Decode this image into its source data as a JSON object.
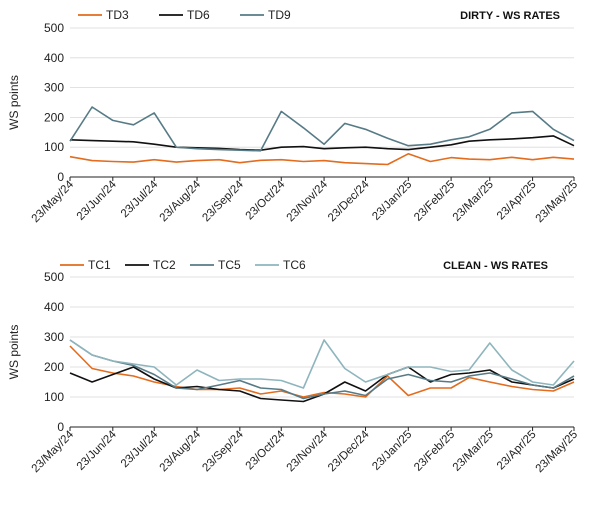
{
  "colors": {
    "series_a": "#e36c1e",
    "series_b": "#111111",
    "series_c": "#577b86",
    "series_d": "#8eb5bd",
    "grid": "#d9d9d9",
    "axis": "#222222"
  },
  "chart_data": [
    {
      "type": "line",
      "title": "DIRTY - WS RATES",
      "ylabel": "WS points",
      "xlabel": "",
      "ylim": [
        0,
        500
      ],
      "yticks": [
        0,
        100,
        200,
        300,
        400,
        500
      ],
      "grid": true,
      "legend_position": "top-left",
      "x_tick_labels": [
        "23/May/24",
        "23/Jun/24",
        "23/Jul/24",
        "23/Aug/24",
        "23/Sep/24",
        "23/Oct/24",
        "23/Nov/24",
        "23/Dec/24",
        "23/Jan/25",
        "23/Feb/25",
        "23/Mar/25",
        "23/Apr/25",
        "23/May/25"
      ],
      "x": [
        "23/May/24",
        "08/Jun/24",
        "23/Jun/24",
        "08/Jul/24",
        "23/Jul/24",
        "08/Aug/24",
        "23/Aug/24",
        "08/Sep/24",
        "23/Sep/24",
        "08/Oct/24",
        "23/Oct/24",
        "08/Nov/24",
        "23/Nov/24",
        "08/Dec/24",
        "23/Dec/24",
        "08/Jan/25",
        "23/Jan/25",
        "08/Feb/25",
        "23/Feb/25",
        "08/Mar/25",
        "23/Mar/25",
        "08/Apr/25",
        "23/Apr/25",
        "08/May/25",
        "23/May/25"
      ],
      "series": [
        {
          "name": "TD3",
          "color": "#e36c1e",
          "values": [
            68,
            55,
            52,
            50,
            58,
            50,
            55,
            58,
            48,
            56,
            58,
            52,
            55,
            48,
            45,
            42,
            78,
            52,
            65,
            60,
            58,
            66,
            58,
            66,
            60
          ]
        },
        {
          "name": "TD6",
          "color": "#111111",
          "values": [
            125,
            122,
            120,
            118,
            110,
            100,
            98,
            96,
            92,
            90,
            100,
            102,
            95,
            98,
            100,
            95,
            92,
            100,
            108,
            120,
            125,
            128,
            132,
            138,
            105
          ]
        },
        {
          "name": "TD9",
          "color": "#577b86",
          "values": [
            120,
            235,
            190,
            175,
            215,
            100,
            95,
            92,
            90,
            88,
            220,
            165,
            110,
            180,
            160,
            130,
            105,
            110,
            125,
            135,
            160,
            215,
            220,
            160,
            122
          ]
        }
      ]
    },
    {
      "type": "line",
      "title": "CLEAN - WS RATES",
      "ylabel": "WS points",
      "xlabel": "",
      "ylim": [
        0,
        500
      ],
      "yticks": [
        0,
        100,
        200,
        300,
        400,
        500
      ],
      "grid": true,
      "legend_position": "top-left",
      "x_tick_labels": [
        "23/May/24",
        "23/Jun/24",
        "23/Jul/24",
        "23/Aug/24",
        "23/Sep/24",
        "23/Oct/24",
        "23/Nov/24",
        "23/Dec/24",
        "23/Jan/25",
        "23/Feb/25",
        "23/Mar/25",
        "23/Apr/25",
        "23/May/25"
      ],
      "x": [
        "23/May/24",
        "08/Jun/24",
        "23/Jun/24",
        "08/Jul/24",
        "23/Jul/24",
        "08/Aug/24",
        "23/Aug/24",
        "08/Sep/24",
        "23/Sep/24",
        "08/Oct/24",
        "23/Oct/24",
        "08/Nov/24",
        "23/Nov/24",
        "08/Dec/24",
        "23/Dec/24",
        "08/Jan/25",
        "23/Jan/25",
        "08/Feb/25",
        "23/Feb/25",
        "08/Mar/25",
        "23/Mar/25",
        "08/Apr/25",
        "23/Apr/25",
        "08/May/25",
        "23/May/25"
      ],
      "series": [
        {
          "name": "TC1",
          "color": "#e36c1e",
          "values": [
            270,
            195,
            180,
            170,
            150,
            135,
            125,
            125,
            130,
            110,
            120,
            100,
            115,
            110,
            100,
            170,
            105,
            130,
            130,
            165,
            150,
            135,
            125,
            120,
            150
          ]
        },
        {
          "name": "TC2",
          "color": "#111111",
          "values": [
            180,
            150,
            175,
            200,
            160,
            130,
            135,
            125,
            120,
            95,
            90,
            85,
            110,
            150,
            120,
            175,
            200,
            150,
            175,
            180,
            190,
            150,
            140,
            130,
            160
          ]
        },
        {
          "name": "TC5",
          "color": "#577b86",
          "values": [
            290,
            240,
            220,
            205,
            175,
            130,
            125,
            140,
            155,
            130,
            125,
            95,
            110,
            120,
            105,
            160,
            175,
            155,
            150,
            170,
            180,
            160,
            140,
            130,
            170
          ]
        },
        {
          "name": "TC6",
          "color": "#8eb5bd",
          "values": [
            290,
            240,
            220,
            210,
            200,
            140,
            190,
            155,
            160,
            160,
            155,
            130,
            290,
            195,
            150,
            175,
            200,
            200,
            185,
            190,
            280,
            190,
            150,
            140,
            220
          ]
        }
      ]
    }
  ]
}
